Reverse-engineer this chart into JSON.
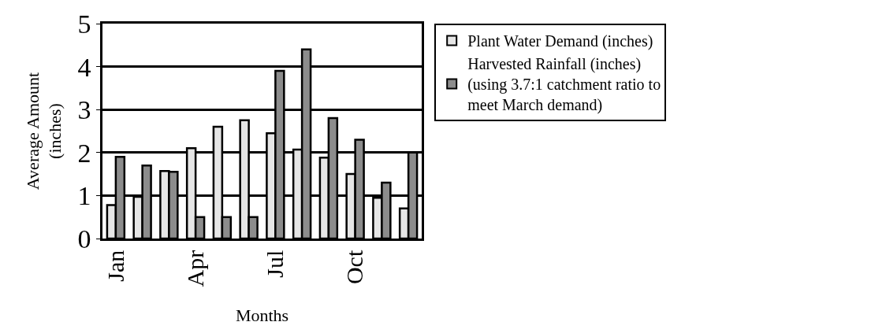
{
  "chart_data": {
    "type": "bar",
    "xlabel": "Months",
    "ylabel": "Average Amount\n(inches)",
    "categories": [
      "Jan",
      null,
      null,
      "Apr",
      null,
      null,
      "Jul",
      null,
      null,
      "Oct",
      null,
      null
    ],
    "series": [
      {
        "name": "Plant Water Demand (inches)",
        "color": "#e6e6e6",
        "values": [
          0.78,
          0.97,
          1.57,
          2.1,
          2.6,
          2.75,
          2.45,
          2.07,
          1.88,
          1.5,
          0.95,
          0.7
        ]
      },
      {
        "name": "Harvested Rainfall (inches)\n(using 3.7:1 catchment ratio to\nmeet March demand)",
        "color": "#8c8c8c",
        "values": [
          1.9,
          1.7,
          1.55,
          0.5,
          0.5,
          0.5,
          3.9,
          4.4,
          2.8,
          2.3,
          1.3,
          2.0
        ]
      }
    ],
    "ylim": [
      0,
      5
    ],
    "yticks": [
      0,
      1,
      2,
      3,
      4,
      5
    ],
    "grid": "y",
    "legend": "right"
  }
}
